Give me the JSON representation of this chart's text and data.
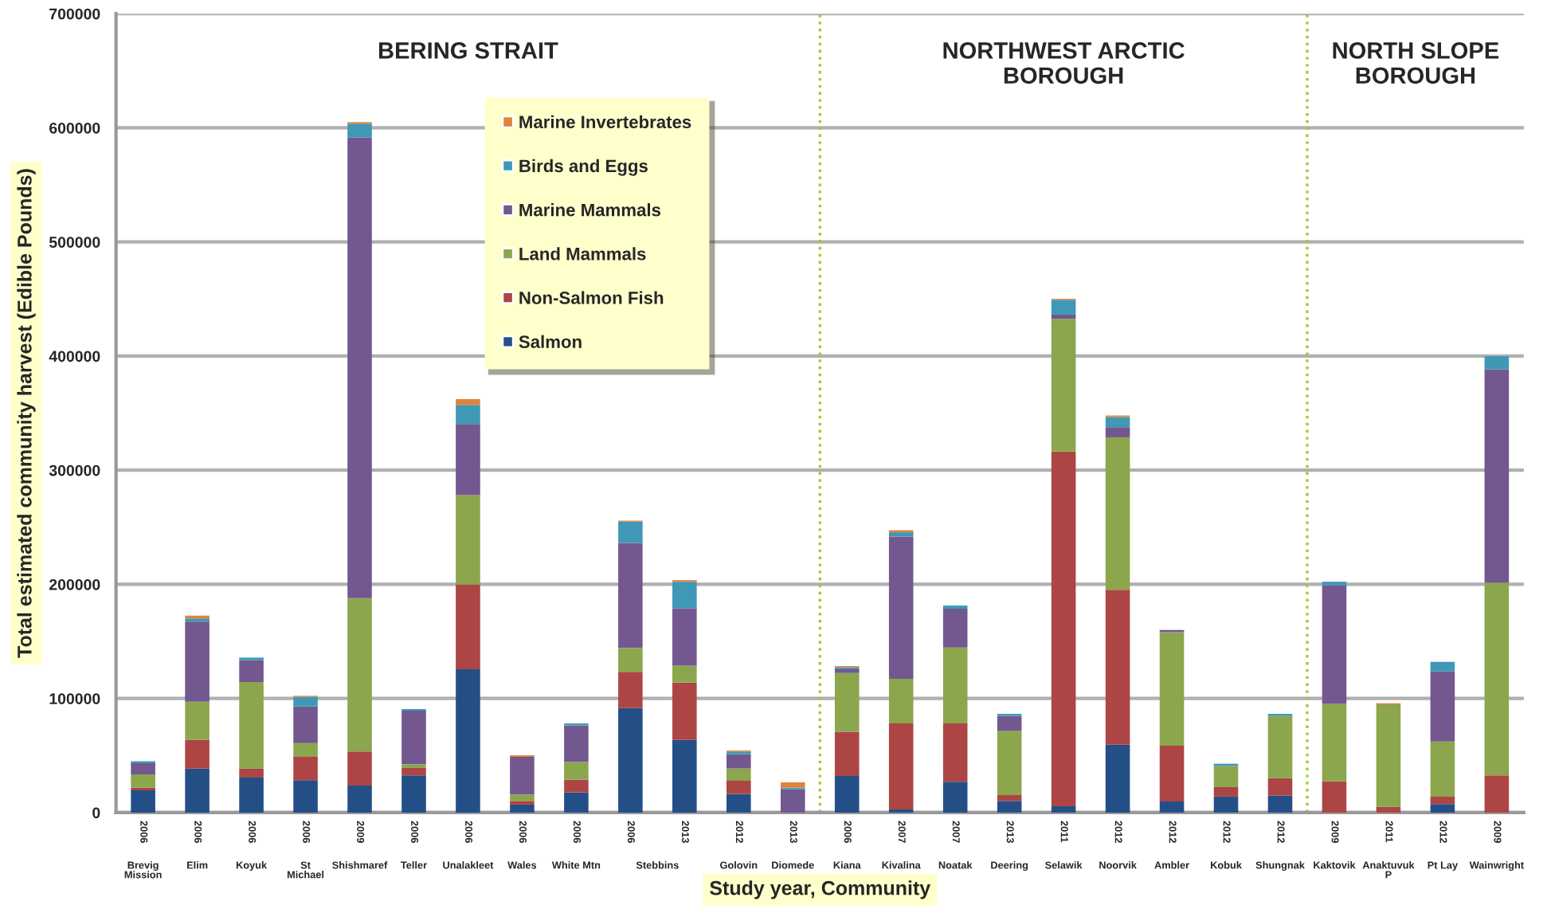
{
  "chart_data": {
    "type": "bar",
    "stacked": true,
    "categories": [
      "Brevig Mission",
      "Elim",
      "Koyuk",
      "St Michael",
      "Shishmaref",
      "Teller",
      "Unalakleet",
      "Wales",
      "White Mtn",
      "Stebbins",
      null,
      "Golovin",
      "Diomede",
      "Kiana",
      "Kivalina",
      "Noatak",
      "Deering",
      "Selawik",
      "Noorvik",
      "Ambler",
      "Kobuk",
      "Shungnak",
      "Kaktovik",
      "Anaktuvuk P",
      "Pt Lay",
      "Wainwright"
    ],
    "series": [
      {
        "name": "Salmon",
        "color": "#244f86",
        "values": [
          19500,
          38600,
          30700,
          28400,
          23700,
          32600,
          125600,
          7000,
          17700,
          91600,
          63700,
          16300,
          0,
          32100,
          2800,
          27000,
          10200,
          5600,
          59500,
          9800,
          14000,
          14900,
          0,
          0,
          7400,
          0
        ]
      },
      {
        "name": "Non-Salmon Fish",
        "color": "#ad4545",
        "values": [
          2300,
          25100,
          7900,
          20900,
          29800,
          6500,
          74400,
          3200,
          11100,
          31700,
          50300,
          11600,
          0,
          38600,
          75300,
          51100,
          5100,
          310700,
          135800,
          48800,
          8300,
          15300,
          27400,
          5100,
          6600,
          32600
        ]
      },
      {
        "name": "Land Mammals",
        "color": "#8ba64c",
        "values": [
          11600,
          33500,
          75800,
          11600,
          134400,
          3200,
          78100,
          5600,
          15400,
          20900,
          14800,
          10700,
          0,
          51600,
          39100,
          66600,
          56300,
          116300,
          133500,
          99500,
          18600,
          54500,
          67900,
          89800,
          48300,
          168800
        ]
      },
      {
        "name": "Marine Mammals",
        "color": "#73578f",
        "values": [
          9800,
          70200,
          19100,
          32100,
          403700,
          47000,
          62400,
          33000,
          32100,
          92100,
          50300,
          12600,
          20500,
          3300,
          124700,
          33900,
          13100,
          3700,
          8900,
          1900,
          0,
          0,
          103800,
          0,
          61400,
          187000
        ]
      },
      {
        "name": "Birds and Eggs",
        "color": "#3e98b6",
        "values": [
          1700,
          2800,
          2300,
          8400,
          12100,
          1400,
          16700,
          0,
          1800,
          18600,
          23200,
          2300,
          1400,
          1800,
          3700,
          2800,
          1800,
          13000,
          8800,
          0,
          1900,
          1800,
          3200,
          0,
          8400,
          11600
        ]
      },
      {
        "name": "Marine Invertebrates",
        "color": "#e0833b",
        "values": [
          0,
          2400,
          0,
          900,
          1400,
          0,
          5100,
          1400,
          0,
          900,
          1400,
          900,
          4600,
          1000,
          1800,
          0,
          0,
          900,
          1400,
          0,
          0,
          0,
          0,
          900,
          0,
          0
        ]
      }
    ],
    "ylim": [
      0,
      700000
    ],
    "yticks": [
      0,
      100000,
      200000,
      300000,
      400000,
      500000,
      600000,
      700000
    ],
    "grid": "y",
    "legend": "top left",
    "ylabel": "Total estimated community harvest (Edible Pounds)",
    "xlabel": "Study year, Community",
    "annotations": [
      "BERING STRAIT",
      "NORTHWEST ARCTIC\nBOROUGH",
      "NORTH SLOPE\nBOROUGH",
      "2006",
      "2006",
      "2006",
      "2006",
      "2009",
      "2006",
      "2006",
      "2006",
      "2006",
      "2006",
      "2013",
      "2012",
      "2013",
      "2006",
      "2007",
      "2007",
      "2013",
      "2011",
      "2012",
      "2012",
      "2012",
      "2012",
      "2009",
      "2011",
      "2012",
      "2009"
    ]
  }
}
